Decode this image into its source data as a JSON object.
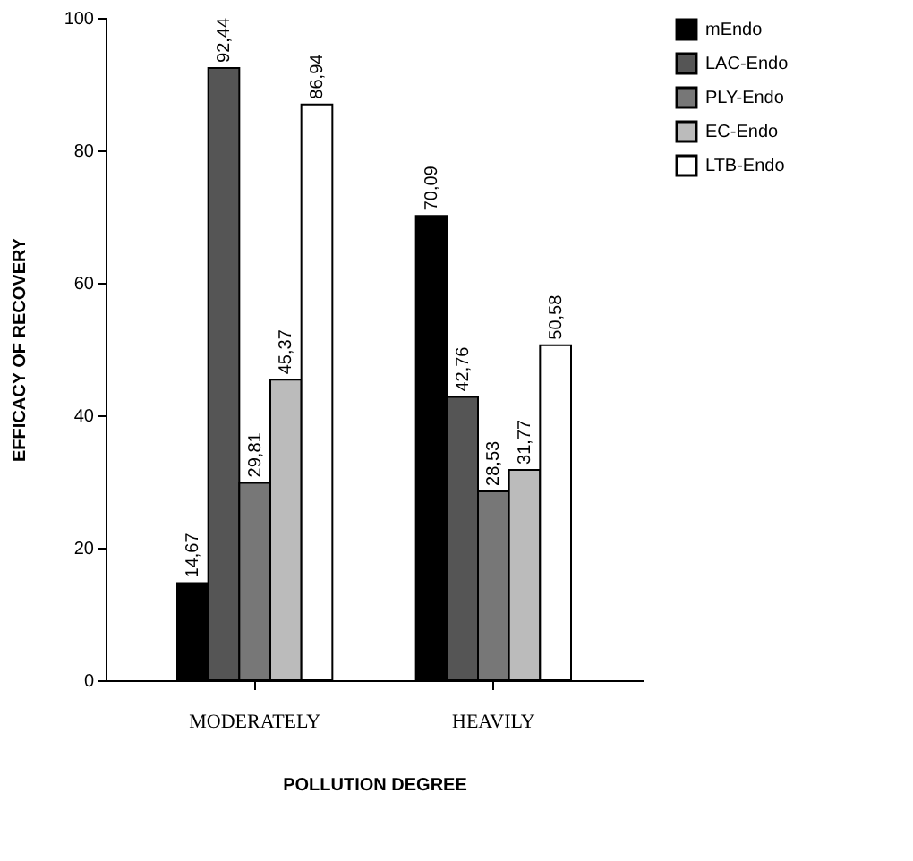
{
  "chart_data": {
    "type": "bar",
    "xlabel": "POLLUTION DEGREE",
    "ylabel": "EFFICACY OF RECOVERY",
    "categories": [
      "MODERATELY",
      "HEAVILY"
    ],
    "series": [
      {
        "name": "mEndo",
        "color": "#000000",
        "values": [
          14.67,
          70.09
        ],
        "value_labels": [
          "14,67",
          "70,09"
        ]
      },
      {
        "name": "LAC-Endo",
        "color": "#555555",
        "values": [
          92.44,
          42.76
        ],
        "value_labels": [
          "92,44",
          "42,76"
        ]
      },
      {
        "name": "PLY-Endo",
        "color": "#777777",
        "values": [
          29.81,
          28.53
        ],
        "value_labels": [
          "29,81",
          "28,53"
        ]
      },
      {
        "name": "EC-Endo",
        "color": "#bbbbbb",
        "values": [
          45.37,
          31.77
        ],
        "value_labels": [
          "45,37",
          "31,77"
        ]
      },
      {
        "name": "LTB-Endo",
        "color": "#ffffff",
        "values": [
          86.94,
          50.58
        ],
        "value_labels": [
          "86,94",
          "50,58"
        ]
      }
    ],
    "ylim": [
      0,
      100
    ],
    "yticks": [
      0,
      20,
      40,
      60,
      80,
      100
    ],
    "grid": false,
    "legend": "right"
  }
}
